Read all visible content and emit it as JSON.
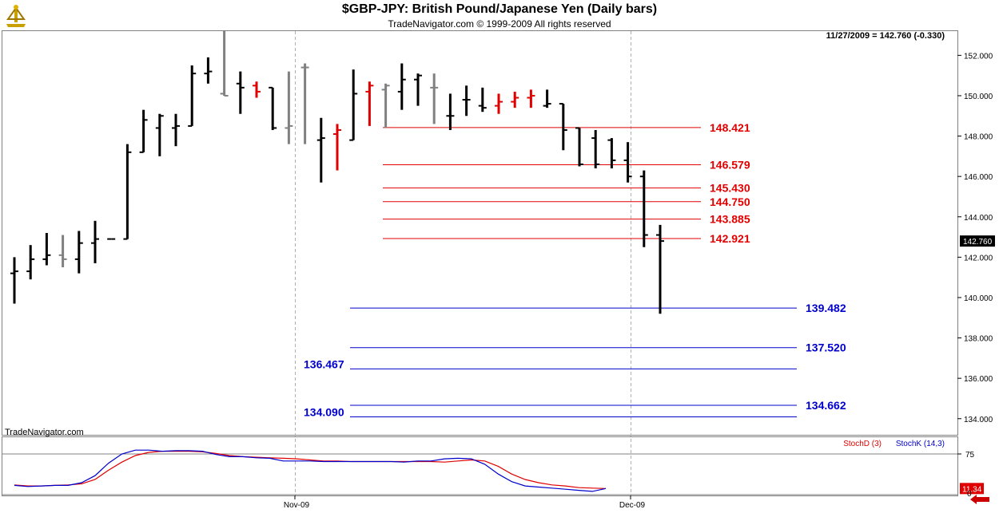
{
  "header": {
    "title": "$GBP-JPY:  British Pound/Japanese Yen  (Daily bars)",
    "subtitle": "TradeNavigator.com © 1999-2009 All rights reserved",
    "quote": "11/27/2009 = 142.760 (-0.330)",
    "watermark": "TradeNavigator.com"
  },
  "colors": {
    "up_bar": "#000000",
    "gray_bar": "#808080",
    "red_bar": "#e00000",
    "resistance": "#e00000",
    "support": "#0000cc",
    "stoch_d": "#e00000",
    "stoch_k": "#0000cc"
  },
  "chart_data": [
    {
      "type": "ohlc",
      "x_tick_labels": [
        "Nov-09",
        "Dec-09"
      ],
      "ylim": [
        133.2,
        153.2
      ],
      "y_ticks": [
        "134.000",
        "136.000",
        "138.000",
        "140.000",
        "142.000",
        "144.000",
        "146.000",
        "148.000",
        "150.000",
        "152.000"
      ],
      "last_price_label": "142.760",
      "bars": [
        {
          "o": 141.2,
          "h": 142.0,
          "l": 139.7,
          "c": 141.3,
          "color": "black"
        },
        {
          "o": 141.3,
          "h": 142.6,
          "l": 140.9,
          "c": 141.9,
          "color": "black"
        },
        {
          "o": 141.9,
          "h": 143.2,
          "l": 141.6,
          "c": 142.1,
          "color": "black"
        },
        {
          "o": 142.1,
          "h": 143.1,
          "l": 141.5,
          "c": 141.9,
          "color": "gray"
        },
        {
          "o": 141.9,
          "h": 143.3,
          "l": 141.2,
          "c": 142.7,
          "color": "black"
        },
        {
          "o": 142.7,
          "h": 143.8,
          "l": 141.7,
          "c": 142.9,
          "color": "black"
        },
        {
          "o": 142.9,
          "h": 142.9,
          "l": 142.9,
          "c": 142.9,
          "color": "black"
        },
        {
          "o": 142.9,
          "h": 147.6,
          "l": 142.9,
          "c": 147.2,
          "color": "black"
        },
        {
          "o": 147.2,
          "h": 149.3,
          "l": 147.2,
          "c": 148.8,
          "color": "black"
        },
        {
          "o": 148.4,
          "h": 149.1,
          "l": 147.0,
          "c": 149.0,
          "color": "black"
        },
        {
          "o": 148.4,
          "h": 149.1,
          "l": 147.5,
          "c": 148.5,
          "color": "black"
        },
        {
          "o": 148.5,
          "h": 151.5,
          "l": 148.5,
          "c": 151.1,
          "color": "black"
        },
        {
          "o": 151.1,
          "h": 151.9,
          "l": 150.6,
          "c": 151.2,
          "color": "black"
        },
        {
          "o": 150.1,
          "h": 153.2,
          "l": 150.0,
          "c": 150.0,
          "color": "gray"
        },
        {
          "o": 150.6,
          "h": 151.2,
          "l": 149.1,
          "c": 150.4,
          "color": "black"
        },
        {
          "o": 150.5,
          "h": 150.7,
          "l": 149.9,
          "c": 150.2,
          "color": "red"
        },
        {
          "o": 150.4,
          "h": 150.4,
          "l": 148.3,
          "c": 148.4,
          "color": "black"
        },
        {
          "o": 148.4,
          "h": 151.2,
          "l": 147.6,
          "c": 148.5,
          "color": "gray"
        },
        {
          "o": 151.4,
          "h": 151.6,
          "l": 147.6,
          "c": 151.4,
          "color": "gray"
        },
        {
          "o": 147.8,
          "h": 148.9,
          "l": 145.7,
          "c": 147.9,
          "color": "black"
        },
        {
          "o": 148.1,
          "h": 148.6,
          "l": 146.3,
          "c": 148.3,
          "color": "red"
        },
        {
          "o": 147.8,
          "h": 151.3,
          "l": 147.8,
          "c": 150.1,
          "color": "black"
        },
        {
          "o": 150.2,
          "h": 150.7,
          "l": 148.5,
          "c": 150.5,
          "color": "red"
        },
        {
          "o": 150.3,
          "h": 150.6,
          "l": 148.4,
          "c": 150.5,
          "color": "gray"
        },
        {
          "o": 150.2,
          "h": 151.6,
          "l": 149.3,
          "c": 150.8,
          "color": "black"
        },
        {
          "o": 150.8,
          "h": 151.1,
          "l": 149.5,
          "c": 151.0,
          "color": "black"
        },
        {
          "o": 150.4,
          "h": 151.1,
          "l": 148.6,
          "c": 150.4,
          "color": "gray"
        },
        {
          "o": 149.0,
          "h": 150.1,
          "l": 148.3,
          "c": 149.0,
          "color": "black"
        },
        {
          "o": 149.8,
          "h": 150.5,
          "l": 149.0,
          "c": 149.8,
          "color": "black"
        },
        {
          "o": 149.5,
          "h": 150.4,
          "l": 149.2,
          "c": 149.4,
          "color": "black"
        },
        {
          "o": 149.5,
          "h": 150.1,
          "l": 149.1,
          "c": 149.7,
          "color": "red"
        },
        {
          "o": 149.7,
          "h": 150.2,
          "l": 149.4,
          "c": 149.9,
          "color": "red"
        },
        {
          "o": 149.9,
          "h": 150.3,
          "l": 149.4,
          "c": 150.0,
          "color": "red"
        },
        {
          "o": 149.5,
          "h": 150.3,
          "l": 149.4,
          "c": 149.6,
          "color": "black"
        },
        {
          "o": 149.6,
          "h": 149.6,
          "l": 147.3,
          "c": 148.3,
          "color": "black"
        },
        {
          "o": 148.4,
          "h": 148.4,
          "l": 146.5,
          "c": 146.6,
          "color": "black"
        },
        {
          "o": 147.9,
          "h": 148.3,
          "l": 146.4,
          "c": 146.6,
          "color": "black"
        },
        {
          "o": 147.8,
          "h": 147.9,
          "l": 146.4,
          "c": 146.8,
          "color": "black"
        },
        {
          "o": 146.8,
          "h": 147.7,
          "l": 145.7,
          "c": 146.0,
          "color": "black"
        },
        {
          "o": 146.0,
          "h": 146.3,
          "l": 142.5,
          "c": 143.1,
          "color": "black"
        },
        {
          "o": 143.1,
          "h": 143.6,
          "l": 139.2,
          "c": 142.8,
          "color": "black"
        }
      ],
      "resistance_levels": [
        "148.421",
        "146.579",
        "145.430",
        "144.750",
        "143.885",
        "142.921"
      ],
      "support_levels": [
        "139.482",
        "137.520",
        "136.467",
        "134.662",
        "134.090"
      ],
      "support_label_side": [
        "right",
        "right",
        "left",
        "right",
        "left"
      ]
    },
    {
      "type": "line",
      "ylim": [
        0,
        100
      ],
      "y_ticks": [
        "75",
        "0"
      ],
      "last_value_label": "11.34",
      "series": [
        {
          "name": "StochD (3)",
          "values": [
            18,
            16,
            16,
            17,
            18,
            20,
            28,
            45,
            60,
            72,
            78,
            80,
            80,
            80,
            79,
            76,
            72,
            70,
            69,
            68,
            67,
            66,
            64,
            62,
            62,
            61,
            61,
            61,
            61,
            61,
            61,
            61,
            60,
            62,
            64,
            62,
            52,
            38,
            28,
            22,
            18,
            16,
            13,
            12,
            11.3
          ]
        },
        {
          "name": "StochK (14,3)",
          "values": [
            17,
            15,
            16,
            17,
            17,
            22,
            35,
            58,
            75,
            82,
            82,
            80,
            81,
            81,
            80,
            74,
            70,
            70,
            68,
            67,
            62,
            62,
            62,
            61,
            61,
            61,
            61,
            61,
            61,
            60,
            62,
            62,
            66,
            67,
            66,
            56,
            38,
            24,
            16,
            14,
            12,
            10,
            8,
            6,
            11.3
          ]
        }
      ]
    }
  ]
}
